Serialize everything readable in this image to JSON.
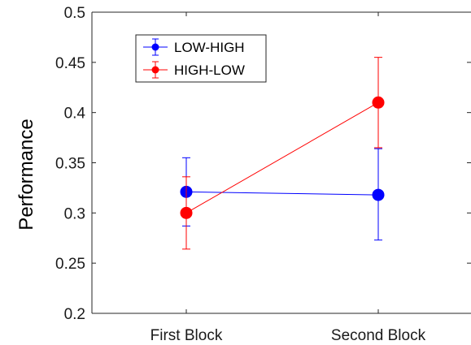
{
  "chart_data": {
    "type": "line",
    "title": "",
    "xlabel": "",
    "ylabel": "Performance",
    "categories": [
      "First Block",
      "Second Block"
    ],
    "ylim": [
      0.2,
      0.5
    ],
    "yticks": [
      0.2,
      0.25,
      0.3,
      0.35,
      0.4,
      0.45,
      0.5
    ],
    "ytick_labels": [
      "0.2",
      "0.25",
      "0.3",
      "0.35",
      "0.4",
      "0.45",
      "0.5"
    ],
    "grid": false,
    "legend_position": "top-left",
    "series": [
      {
        "name": "LOW-HIGH",
        "color": "#0000ff",
        "values": [
          0.321,
          0.318
        ],
        "error_low": [
          0.287,
          0.273
        ],
        "error_high": [
          0.355,
          0.364
        ]
      },
      {
        "name": "HIGH-LOW",
        "color": "#ff0000",
        "values": [
          0.3,
          0.41
        ],
        "error_low": [
          0.264,
          0.365
        ],
        "error_high": [
          0.336,
          0.455
        ]
      }
    ]
  }
}
